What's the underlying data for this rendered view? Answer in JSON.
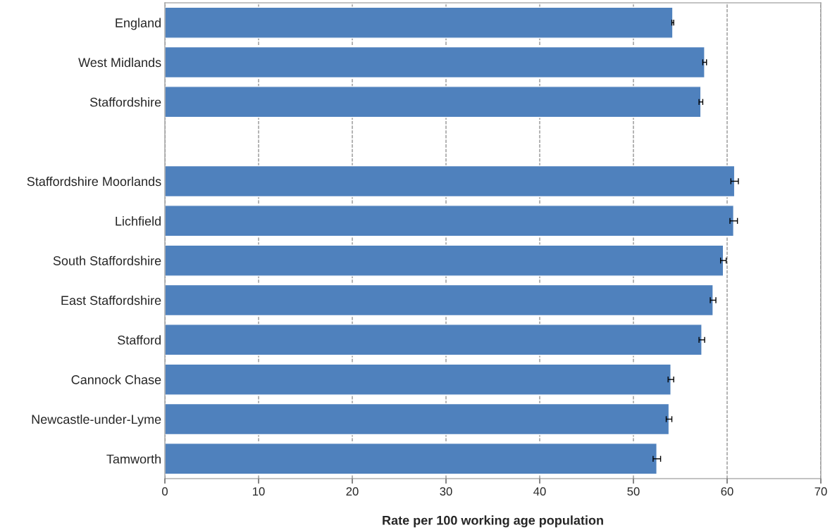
{
  "chart_data": {
    "type": "bar",
    "orientation": "horizontal",
    "categories": [
      "England",
      "West Midlands",
      "Staffordshire",
      null,
      "Staffordshire Moorlands",
      "Lichfield",
      "South Staffordshire",
      "East Staffordshire",
      "Stafford",
      "Cannock Chase",
      "Newcastle-under-Lyme",
      "Tamworth"
    ],
    "values": [
      54.2,
      57.6,
      57.2,
      null,
      60.8,
      60.7,
      59.6,
      58.5,
      57.3,
      54.0,
      53.8,
      52.5
    ],
    "errors": [
      0.1,
      0.2,
      0.2,
      null,
      0.4,
      0.4,
      0.3,
      0.3,
      0.3,
      0.3,
      0.3,
      0.4
    ],
    "color": "#4f81bd",
    "xlabel": "Rate per 100 working age population",
    "xlim": [
      0,
      70
    ],
    "xticks": [
      0,
      10,
      20,
      30,
      40,
      50,
      60,
      70
    ],
    "grid": "x"
  }
}
